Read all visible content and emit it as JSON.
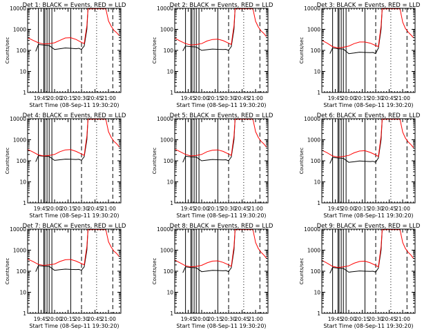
{
  "figure": {
    "x_caption": "Start Time (08-Sep-11 19:30:20)",
    "ylabel": "Counts/sec",
    "y_tick_labels": [
      "1",
      "10",
      "100",
      "1000",
      "10000"
    ],
    "x_tick_labels": [
      "19:45",
      "20:00",
      "20:15",
      "20:30",
      "20:45",
      "21:00"
    ]
  },
  "chart_data": [
    {
      "type": "line",
      "title": "Det 1: BLACK = Events, RED = LLD",
      "xlabel": "Start Time (08-Sep-11 19:30:20)",
      "ylabel": "Counts/sec",
      "yscale": "log",
      "ylim": [
        1,
        10000
      ],
      "xlim_hours": [
        19.5,
        21.23
      ],
      "series": [
        {
          "name": "Events",
          "color": "#000000",
          "x": [
            19.65,
            19.7,
            19.8,
            19.9,
            20.0,
            20.1,
            20.2,
            20.3,
            20.4,
            20.45,
            20.5,
            20.53,
            20.55,
            20.6,
            20.62
          ],
          "y": [
            90,
            190,
            180,
            170,
            110,
            120,
            130,
            125,
            120,
            125,
            110,
            140,
            160,
            1000,
            9500
          ]
        },
        {
          "name": "LLD",
          "color": "#ff0000",
          "x": [
            19.5,
            19.6,
            19.7,
            19.8,
            19.9,
            20.0,
            20.1,
            20.2,
            20.3,
            20.4,
            20.5,
            20.55,
            20.6,
            20.62,
            20.95,
            21.0,
            21.05,
            21.1,
            21.15,
            21.2
          ],
          "y": [
            400,
            300,
            230,
            200,
            210,
            230,
            300,
            390,
            400,
            330,
            240,
            210,
            1500,
            9500,
            9500,
            2500,
            1400,
            900,
            700,
            500
          ]
        }
      ],
      "vertical_lines": {
        "solid": [
          19.7,
          19.8,
          19.82,
          19.86,
          19.9,
          19.95,
          20.3
        ],
        "dashed": [
          20.5,
          21.08
        ],
        "dotted": [
          20.78
        ]
      }
    },
    {
      "type": "line",
      "title": "Det 2: BLACK = Events, RED = LLD",
      "xlabel": "Start Time (08-Sep-11 19:30:20)",
      "ylabel": "Counts/sec",
      "yscale": "log",
      "ylim": [
        1,
        10000
      ],
      "xlim_hours": [
        19.5,
        21.23
      ],
      "series": [
        {
          "name": "Events",
          "color": "#000000",
          "x": [
            19.65,
            19.7,
            19.8,
            19.9,
            20.0,
            20.1,
            20.2,
            20.3,
            20.4,
            20.45,
            20.5,
            20.53,
            20.55,
            20.6,
            20.62
          ],
          "y": [
            95,
            160,
            150,
            145,
            100,
            108,
            115,
            112,
            110,
            112,
            100,
            130,
            150,
            1000,
            9500
          ]
        },
        {
          "name": "LLD",
          "color": "#ff0000",
          "x": [
            19.5,
            19.6,
            19.7,
            19.8,
            19.9,
            20.0,
            20.1,
            20.2,
            20.3,
            20.4,
            20.5,
            20.55,
            20.6,
            20.62,
            20.95,
            21.0,
            21.05,
            21.1,
            21.15,
            21.2
          ],
          "y": [
            380,
            280,
            210,
            180,
            190,
            210,
            280,
            330,
            340,
            290,
            220,
            190,
            1500,
            9500,
            9500,
            2400,
            1300,
            850,
            650,
            450
          ]
        }
      ],
      "vertical_lines": {
        "solid": [
          19.7,
          19.8,
          19.82,
          19.86,
          19.9,
          19.95,
          20.3
        ],
        "dashed": [
          20.5,
          21.08
        ],
        "dotted": [
          20.78
        ]
      }
    },
    {
      "type": "line",
      "title": "Det 3: BLACK = Events, RED = LLD",
      "xlabel": "Start Time (08-Sep-11 19:30:20)",
      "ylabel": "Counts/sec",
      "yscale": "log",
      "ylim": [
        1,
        10000
      ],
      "xlim_hours": [
        19.5,
        21.23
      ],
      "series": [
        {
          "name": "Events",
          "color": "#000000",
          "x": [
            19.65,
            19.7,
            19.8,
            19.9,
            20.0,
            20.1,
            20.2,
            20.3,
            20.4,
            20.45,
            20.5,
            20.53,
            20.55,
            20.6,
            20.62
          ],
          "y": [
            70,
            130,
            120,
            115,
            70,
            75,
            82,
            80,
            78,
            80,
            70,
            105,
            125,
            1000,
            9500
          ]
        },
        {
          "name": "LLD",
          "color": "#ff0000",
          "x": [
            19.5,
            19.6,
            19.7,
            19.8,
            19.9,
            20.0,
            20.1,
            20.2,
            20.3,
            20.4,
            20.5,
            20.55,
            20.6,
            20.62,
            20.95,
            21.0,
            21.05,
            21.1,
            21.15,
            21.2
          ],
          "y": [
            300,
            220,
            150,
            130,
            140,
            160,
            210,
            250,
            250,
            220,
            170,
            150,
            1500,
            9500,
            9500,
            2200,
            1100,
            750,
            550,
            400
          ]
        }
      ],
      "vertical_lines": {
        "solid": [
          19.7,
          19.8,
          19.82,
          19.86,
          19.9,
          19.95,
          20.3
        ],
        "dashed": [
          20.5,
          21.08
        ],
        "dotted": [
          20.78
        ]
      }
    },
    {
      "type": "line",
      "title": "Det 4: BLACK = Events, RED = LLD",
      "xlabel": "Start Time (08-Sep-11 19:30:20)",
      "ylabel": "Counts/sec",
      "yscale": "log",
      "ylim": [
        1,
        10000
      ],
      "xlim_hours": [
        19.5,
        21.23
      ],
      "series": [
        {
          "name": "Events",
          "color": "#000000",
          "x": [
            19.65,
            19.7,
            19.8,
            19.9,
            20.0,
            20.1,
            20.2,
            20.3,
            20.4,
            20.45,
            20.5,
            20.53,
            20.55,
            20.6,
            20.62
          ],
          "y": [
            90,
            175,
            165,
            160,
            105,
            112,
            120,
            118,
            115,
            118,
            105,
            135,
            155,
            1000,
            9500
          ]
        },
        {
          "name": "LLD",
          "color": "#ff0000",
          "x": [
            19.5,
            19.6,
            19.7,
            19.8,
            19.9,
            20.0,
            20.1,
            20.2,
            20.3,
            20.4,
            20.5,
            20.55,
            20.6,
            20.62,
            20.95,
            21.0,
            21.05,
            21.1,
            21.15,
            21.2
          ],
          "y": [
            350,
            260,
            190,
            170,
            180,
            200,
            270,
            330,
            340,
            280,
            210,
            180,
            1500,
            9500,
            9500,
            2400,
            1300,
            850,
            650,
            450
          ]
        }
      ],
      "vertical_lines": {
        "solid": [
          19.7,
          19.8,
          19.82,
          19.86,
          19.9,
          19.95,
          20.3
        ],
        "dashed": [
          20.5,
          21.08
        ],
        "dotted": [
          20.78
        ]
      }
    },
    {
      "type": "line",
      "title": "Det 5: BLACK = Events, RED = LLD",
      "xlabel": "Start Time (08-Sep-11 19:30:20)",
      "ylabel": "Counts/sec",
      "yscale": "log",
      "ylim": [
        1,
        10000
      ],
      "xlim_hours": [
        19.5,
        21.23
      ],
      "series": [
        {
          "name": "Events",
          "color": "#000000",
          "x": [
            19.65,
            19.7,
            19.8,
            19.9,
            20.0,
            20.1,
            20.2,
            20.3,
            20.4,
            20.45,
            20.5,
            20.53,
            20.55,
            20.6,
            20.62
          ],
          "y": [
            85,
            165,
            155,
            150,
            100,
            108,
            115,
            112,
            110,
            112,
            100,
            130,
            150,
            1000,
            9500
          ]
        },
        {
          "name": "LLD",
          "color": "#ff0000",
          "x": [
            19.5,
            19.6,
            19.7,
            19.8,
            19.9,
            20.0,
            20.1,
            20.2,
            20.3,
            20.4,
            20.5,
            20.55,
            20.6,
            20.62,
            20.95,
            21.0,
            21.05,
            21.1,
            21.15,
            21.2
          ],
          "y": [
            360,
            270,
            200,
            170,
            180,
            200,
            270,
            320,
            330,
            280,
            210,
            180,
            1500,
            9500,
            9500,
            2400,
            1300,
            850,
            650,
            450
          ]
        }
      ],
      "vertical_lines": {
        "solid": [
          19.7,
          19.8,
          19.82,
          19.86,
          19.9,
          19.95,
          20.3
        ],
        "dashed": [
          20.5,
          21.08
        ],
        "dotted": [
          20.78
        ]
      }
    },
    {
      "type": "line",
      "title": "Det 6: BLACK = Events, RED = LLD",
      "xlabel": "Start Time (08-Sep-11 19:30:20)",
      "ylabel": "Counts/sec",
      "yscale": "log",
      "ylim": [
        1,
        10000
      ],
      "xlim_hours": [
        19.5,
        21.23
      ],
      "series": [
        {
          "name": "Events",
          "color": "#000000",
          "x": [
            19.65,
            19.7,
            19.8,
            19.9,
            20.0,
            20.1,
            20.2,
            20.3,
            20.4,
            20.45,
            20.5,
            20.53,
            20.55,
            20.6,
            20.62
          ],
          "y": [
            75,
            145,
            135,
            130,
            85,
            90,
            98,
            95,
            92,
            95,
            85,
            115,
            135,
            1000,
            9500
          ]
        },
        {
          "name": "LLD",
          "color": "#ff0000",
          "x": [
            19.5,
            19.6,
            19.7,
            19.8,
            19.9,
            20.0,
            20.1,
            20.2,
            20.3,
            20.4,
            20.5,
            20.55,
            20.6,
            20.62,
            20.95,
            21.0,
            21.05,
            21.1,
            21.15,
            21.2
          ],
          "y": [
            320,
            240,
            170,
            150,
            160,
            180,
            240,
            290,
            300,
            250,
            190,
            160,
            1500,
            9500,
            9500,
            2300,
            1200,
            800,
            600,
            420
          ]
        }
      ],
      "vertical_lines": {
        "solid": [
          19.7,
          19.8,
          19.82,
          19.86,
          19.9,
          19.95,
          20.3
        ],
        "dashed": [
          20.5,
          21.08
        ],
        "dotted": [
          20.78
        ]
      }
    },
    {
      "type": "line",
      "title": "Det 7: BLACK = Events, RED = LLD",
      "xlabel": "Start Time (08-Sep-11 19:30:20)",
      "ylabel": "Counts/sec",
      "yscale": "log",
      "ylim": [
        1,
        10000
      ],
      "xlim_hours": [
        19.5,
        21.23
      ],
      "series": [
        {
          "name": "Events",
          "color": "#000000",
          "x": [
            19.65,
            19.7,
            19.8,
            19.9,
            20.0,
            20.1,
            20.2,
            20.3,
            20.4,
            20.45,
            20.5,
            20.53,
            20.55,
            20.6,
            20.62
          ],
          "y": [
            95,
            185,
            175,
            170,
            110,
            118,
            125,
            122,
            120,
            122,
            110,
            140,
            160,
            1000,
            9500
          ]
        },
        {
          "name": "LLD",
          "color": "#ff0000",
          "x": [
            19.5,
            19.6,
            19.7,
            19.8,
            19.9,
            20.0,
            20.1,
            20.2,
            20.3,
            20.4,
            20.5,
            20.55,
            20.6,
            20.62,
            20.95,
            21.0,
            21.05,
            21.1,
            21.15,
            21.2
          ],
          "y": [
            380,
            290,
            210,
            190,
            200,
            220,
            290,
            350,
            360,
            300,
            230,
            200,
            1500,
            9500,
            9500,
            2500,
            1400,
            900,
            700,
            480
          ]
        }
      ],
      "vertical_lines": {
        "solid": [
          19.7,
          19.8,
          19.82,
          19.86,
          19.9,
          19.95,
          20.3
        ],
        "dashed": [
          20.5,
          21.08
        ],
        "dotted": [
          20.78
        ]
      }
    },
    {
      "type": "line",
      "title": "Det 8: BLACK = Events, RED = LLD",
      "xlabel": "Start Time (08-Sep-11 19:30:20)",
      "ylabel": "Counts/sec",
      "yscale": "log",
      "ylim": [
        1,
        10000
      ],
      "xlim_hours": [
        19.5,
        21.23
      ],
      "series": [
        {
          "name": "Events",
          "color": "#000000",
          "x": [
            19.65,
            19.7,
            19.8,
            19.9,
            20.0,
            20.1,
            20.2,
            20.3,
            20.4,
            20.45,
            20.5,
            20.53,
            20.55,
            20.6,
            20.62
          ],
          "y": [
            85,
            160,
            150,
            145,
            95,
            102,
            110,
            108,
            105,
            108,
            95,
            125,
            145,
            1000,
            9500
          ]
        },
        {
          "name": "LLD",
          "color": "#ff0000",
          "x": [
            19.5,
            19.6,
            19.7,
            19.8,
            19.9,
            20.0,
            20.1,
            20.2,
            20.3,
            20.4,
            20.5,
            20.55,
            20.6,
            20.62,
            20.95,
            21.0,
            21.05,
            21.1,
            21.15,
            21.2
          ],
          "y": [
            340,
            250,
            180,
            160,
            170,
            190,
            250,
            300,
            310,
            260,
            200,
            170,
            1500,
            9500,
            9500,
            2300,
            1200,
            800,
            600,
            420
          ]
        }
      ],
      "vertical_lines": {
        "solid": [
          19.7,
          19.8,
          19.82,
          19.86,
          19.9,
          19.95,
          20.3
        ],
        "dashed": [
          20.5,
          21.08
        ],
        "dotted": [
          20.78
        ]
      }
    },
    {
      "type": "line",
      "title": "Det 9: BLACK = Events, RED = LLD",
      "xlabel": "Start Time (08-Sep-11 19:30:20)",
      "ylabel": "Counts/sec",
      "yscale": "log",
      "ylim": [
        1,
        10000
      ],
      "xlim_hours": [
        19.5,
        21.23
      ],
      "series": [
        {
          "name": "Events",
          "color": "#000000",
          "x": [
            19.65,
            19.7,
            19.8,
            19.9,
            20.0,
            20.1,
            20.2,
            20.3,
            20.4,
            20.45,
            20.5,
            20.53,
            20.55,
            20.6,
            20.62
          ],
          "y": [
            80,
            150,
            140,
            135,
            90,
            96,
            103,
            100,
            98,
            100,
            90,
            120,
            140,
            1000,
            9500
          ]
        },
        {
          "name": "LLD",
          "color": "#ff0000",
          "x": [
            19.5,
            19.6,
            19.7,
            19.8,
            19.9,
            20.0,
            20.1,
            20.2,
            20.3,
            20.4,
            20.5,
            20.55,
            20.6,
            20.62,
            20.95,
            21.0,
            21.05,
            21.1,
            21.15,
            21.2
          ],
          "y": [
            330,
            240,
            170,
            150,
            160,
            180,
            240,
            290,
            300,
            250,
            190,
            160,
            1500,
            9500,
            9500,
            2300,
            1200,
            800,
            600,
            400
          ]
        }
      ],
      "vertical_lines": {
        "solid": [
          19.7,
          19.8,
          19.82,
          19.86,
          19.9,
          19.95,
          20.3
        ],
        "dashed": [
          20.5,
          21.08
        ],
        "dotted": [
          20.78
        ]
      }
    }
  ]
}
